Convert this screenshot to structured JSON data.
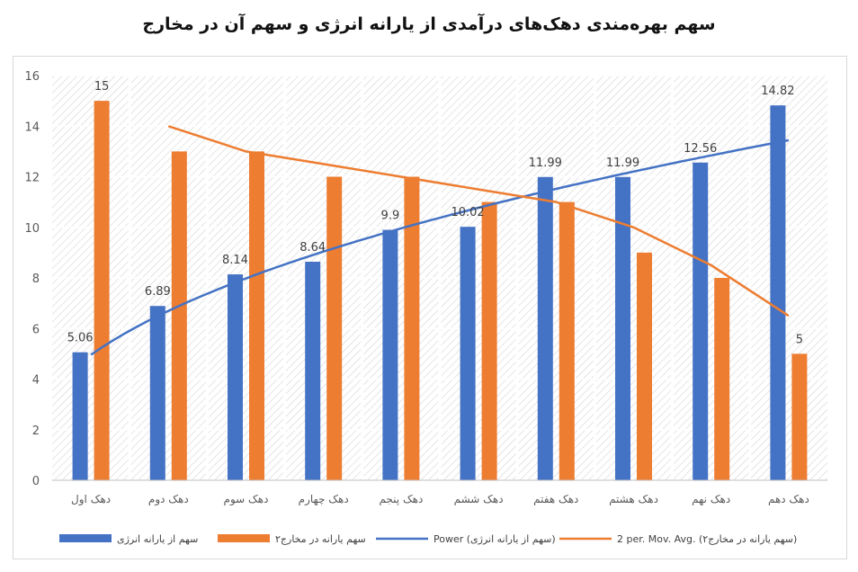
{
  "chart_data": {
    "type": "bar",
    "title": "سهم بهره‌مندی دهک‌های درآمدی از یارانه انرژی و سهم آن در مخارج",
    "categories": [
      "دهک اول",
      "دهک دوم",
      "دهک سوم",
      "دهک چهارم",
      "دهک پنجم",
      "دهک ششم",
      "دهک هفتم",
      "دهک هشتم",
      "دهک نهم",
      "دهک دهم"
    ],
    "series": [
      {
        "name": "سهم از یارانه انرژی",
        "color": "#4472c4",
        "values": [
          5.06,
          6.89,
          8.14,
          8.64,
          9.9,
          10.02,
          11.99,
          11.99,
          12.56,
          14.82
        ],
        "labels": [
          "5.06",
          "6.89",
          "8.14",
          "8.64",
          "9.9",
          "10.02",
          "11.99",
          "11.99",
          "12.56",
          "14.82"
        ]
      },
      {
        "name": "سهم یارانه در مخارج۲",
        "color": "#ed7d31",
        "values": [
          15,
          13,
          13,
          12,
          12,
          11,
          11,
          9,
          8,
          5
        ],
        "labels": [
          "15",
          "",
          "",
          "",
          "",
          "",
          "",
          "",
          "",
          "5"
        ]
      }
    ],
    "trendlines": [
      {
        "name": "Power (سهم از یارانه انرژی)",
        "type": "power",
        "color": "#4472c4",
        "a": 4.96,
        "b": 0.433,
        "x_start": 1,
        "x_end": 10
      },
      {
        "name": "2 per. Mov. Avg. (سهم یارانه در مخارج۲)",
        "type": "moving-average",
        "period": 2,
        "color": "#ed7d31",
        "values": [
          14,
          13,
          12.5,
          12,
          11.5,
          11,
          10,
          8.5,
          6.5
        ],
        "x_start": 2,
        "x_end": 10
      }
    ],
    "ylim": [
      0,
      16
    ],
    "yticks": [
      "0",
      "2",
      "4",
      "6",
      "8",
      "10",
      "12",
      "14",
      "16"
    ],
    "xlabel": "",
    "ylabel": "",
    "grid": true,
    "legend_position": "bottom"
  }
}
